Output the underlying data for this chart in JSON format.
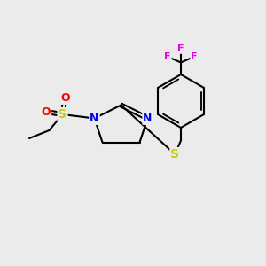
{
  "background_color": "#ebebeb",
  "atom_colors": {
    "C": "#000000",
    "N": "#0000ee",
    "S": "#cccc00",
    "O": "#ff0000",
    "F": "#ee00ee"
  },
  "bond_color": "#000000",
  "bond_width": 1.5,
  "fig_size": [
    3.0,
    3.0
  ],
  "dpi": 100
}
